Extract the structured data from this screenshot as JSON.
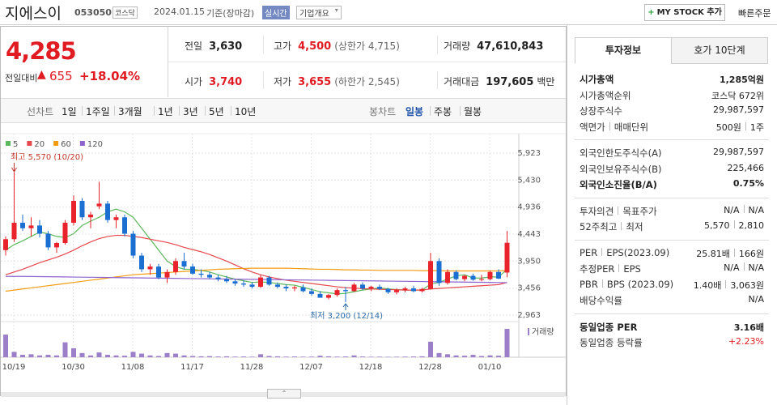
{
  "header": {
    "name": "지에스이",
    "code": "053050",
    "market": "코스닥",
    "date": "2024.01.15",
    "basis": "기준(장마감)",
    "realtime": "실시간",
    "overview": "기업개요",
    "my_stock": "MY STOCK 추가",
    "quick_order": "빠른주문"
  },
  "price": {
    "current": "4,285",
    "change_label": "전일대비",
    "change": "655",
    "change_rate": "+18.04%"
  },
  "stats": [
    {
      "label": "전일",
      "value": "3,630"
    },
    {
      "label": "고가",
      "value": "4,500",
      "extra": "(상한가 4,715)",
      "color": "#e01b22"
    },
    {
      "label": "거래량",
      "value": "47,610,843"
    },
    {
      "label": "시가",
      "value": "3,740",
      "color": "#e01b22"
    },
    {
      "label": "저가",
      "value": "3,655",
      "extra": "(하한가 2,545)",
      "color": "#e01b22"
    },
    {
      "label": "거래대금",
      "value": "197,605",
      "unit": "백만"
    }
  ],
  "chart_tabs": {
    "line_label": "선차트",
    "periods": [
      "1일",
      "1주일",
      "3개월",
      "1년",
      "3년",
      "5년",
      "10년"
    ],
    "candle_label": "봉차트",
    "candle_periods": [
      "일봉",
      "주봉",
      "월봉"
    ]
  },
  "chart_data": {
    "type": "candlestick",
    "x": [
      "10/19",
      null,
      null,
      null,
      null,
      null,
      null,
      "10/30",
      null,
      null,
      null,
      null,
      null,
      null,
      "11/08",
      null,
      null,
      null,
      null,
      null,
      null,
      "11/17",
      null,
      null,
      null,
      null,
      null,
      null,
      "11/28",
      null,
      null,
      null,
      null,
      null,
      null,
      "12/07",
      null,
      null,
      null,
      null,
      null,
      null,
      "12/18",
      null,
      null,
      null,
      null,
      null,
      null,
      "12/28",
      null,
      null,
      null,
      null,
      null,
      null,
      "01/10",
      null,
      null,
      null
    ],
    "open": [
      4150,
      4350,
      4650,
      4550,
      4600,
      4450,
      4200,
      4280,
      4650,
      5050,
      4750,
      4950,
      5000,
      4700,
      4750,
      4450,
      4050,
      3800,
      3850,
      3650,
      3750,
      3950,
      3850,
      3720,
      3700,
      3650,
      3620,
      3580,
      3540,
      3520,
      3480,
      3650,
      3520,
      3480,
      3450,
      3470,
      3400,
      3350,
      3280,
      3330,
      3420,
      3400,
      3520,
      3450,
      3480,
      3440,
      3380,
      3420,
      3450,
      3400,
      3440,
      3950,
      3550,
      3750,
      3620,
      3680,
      3610,
      3620,
      3750,
      3740
    ],
    "high": [
      4400,
      5570,
      4800,
      4750,
      4700,
      4500,
      4300,
      4700,
      5150,
      5100,
      4850,
      5400,
      5050,
      4800,
      4800,
      4500,
      4100,
      3900,
      3900,
      3800,
      4000,
      4100,
      3900,
      3800,
      3750,
      3700,
      3680,
      3620,
      3600,
      3560,
      3700,
      3680,
      3560,
      3520,
      3500,
      3520,
      3450,
      3400,
      3350,
      3450,
      3480,
      3550,
      3560,
      3500,
      3520,
      3460,
      3450,
      3480,
      3500,
      3460,
      4100,
      4000,
      3800,
      3780,
      3700,
      3720,
      3700,
      3780,
      3800,
      4500
    ],
    "low": [
      4050,
      4300,
      4500,
      4400,
      4380,
      4150,
      4100,
      4250,
      4600,
      4700,
      4550,
      4900,
      4650,
      4550,
      4400,
      4000,
      3750,
      3700,
      3620,
      3550,
      3700,
      3800,
      3700,
      3650,
      3620,
      3580,
      3550,
      3500,
      3480,
      3450,
      3460,
      3500,
      3450,
      3400,
      3400,
      3380,
      3320,
      3300,
      3250,
      3300,
      3200,
      3390,
      3420,
      3400,
      3420,
      3350,
      3340,
      3380,
      3380,
      3380,
      3430,
      3500,
      3520,
      3600,
      3580,
      3590,
      3580,
      3600,
      3620,
      3655
    ],
    "close": [
      4350,
      4650,
      4550,
      4600,
      4450,
      4200,
      4280,
      4650,
      5050,
      4750,
      4800,
      5000,
      4700,
      4750,
      4450,
      4050,
      3800,
      3850,
      3650,
      3750,
      3950,
      3850,
      3720,
      3700,
      3650,
      3620,
      3580,
      3540,
      3520,
      3480,
      3650,
      3520,
      3480,
      3450,
      3470,
      3400,
      3350,
      3280,
      3330,
      3420,
      3400,
      3520,
      3450,
      3480,
      3440,
      3380,
      3420,
      3450,
      3400,
      3440,
      3950,
      3550,
      3750,
      3620,
      3680,
      3610,
      3620,
      3750,
      3630,
      4285
    ],
    "up_color": "#e8232b",
    "down_color": "#1a6fd1",
    "ylim": [
      2963,
      5923
    ],
    "yticks": [
      {
        "value": 5923,
        "label": "5,923"
      },
      {
        "value": 5430,
        "label": "5,430"
      },
      {
        "value": 4936,
        "label": "4,936"
      },
      {
        "value": 4443,
        "label": "4,443"
      },
      {
        "value": 3950,
        "label": "3,950"
      },
      {
        "value": 3456,
        "label": "3,456"
      },
      {
        "value": 2963,
        "label": "2,963"
      }
    ],
    "series": [
      {
        "name": "5",
        "color": "#5cb85c",
        "values": [
          4150,
          4250,
          4320,
          4400,
          4480,
          4450,
          4400,
          4380,
          4450,
          4600,
          4680,
          4750,
          4850,
          4900,
          4850,
          4750,
          4550,
          4350,
          4150,
          3950,
          3850,
          3800,
          3800,
          3780,
          3750,
          3700,
          3660,
          3620,
          3590,
          3560,
          3570,
          3560,
          3540,
          3520,
          3510,
          3470,
          3430,
          3390,
          3370,
          3350,
          3360,
          3390,
          3420,
          3440,
          3460,
          3440,
          3430,
          3420,
          3420,
          3420,
          3530,
          3560,
          3620,
          3680,
          3700,
          3640,
          3640,
          3660,
          3660,
          3800
        ]
      },
      {
        "name": "20",
        "color": "#e5484d",
        "values": [
          3700,
          3750,
          3800,
          3860,
          3920,
          3970,
          4020,
          4080,
          4150,
          4230,
          4300,
          4360,
          4400,
          4420,
          4420,
          4400,
          4380,
          4350,
          4320,
          4290,
          4250,
          4200,
          4160,
          4120,
          4070,
          4010,
          3950,
          3880,
          3810,
          3750,
          3700,
          3660,
          3630,
          3600,
          3580,
          3560,
          3540,
          3520,
          3500,
          3480,
          3465,
          3455,
          3445,
          3440,
          3435,
          3430,
          3425,
          3420,
          3420,
          3420,
          3440,
          3450,
          3460,
          3470,
          3480,
          3490,
          3500,
          3510,
          3520,
          3560
        ]
      },
      {
        "name": "60",
        "color": "#f39c12",
        "values": [
          3400,
          3420,
          3440,
          3460,
          3480,
          3500,
          3520,
          3540,
          3560,
          3580,
          3600,
          3620,
          3640,
          3660,
          3680,
          3700,
          3710,
          3720,
          3730,
          3740,
          3750,
          3760,
          3770,
          3780,
          3790,
          3800,
          3805,
          3810,
          3815,
          3820,
          3820,
          3820,
          3820,
          3820,
          3815,
          3810,
          3805,
          3800,
          3800,
          3795,
          3790,
          3790,
          3785,
          3785,
          3780,
          3780,
          3780,
          3780,
          3780,
          3775,
          3775,
          3775,
          3770,
          3770,
          3770,
          3770,
          3770,
          3770,
          3770,
          3780
        ]
      },
      {
        "name": "120",
        "color": "#8e63ce",
        "values": [
          3670,
          3670,
          3670,
          3668,
          3666,
          3664,
          3662,
          3660,
          3658,
          3656,
          3654,
          3652,
          3650,
          3648,
          3646,
          3644,
          3642,
          3640,
          3638,
          3636,
          3634,
          3632,
          3630,
          3628,
          3626,
          3624,
          3622,
          3620,
          3618,
          3616,
          3614,
          3612,
          3610,
          3608,
          3606,
          3604,
          3602,
          3600,
          3598,
          3596,
          3594,
          3592,
          3590,
          3588,
          3586,
          3584,
          3582,
          3580,
          3578,
          3576,
          3574,
          3572,
          3570,
          3568,
          3566,
          3564,
          3562,
          3560,
          3558,
          3556
        ]
      }
    ],
    "volume": {
      "name": "거래량",
      "color": "#9b7fc9",
      "values": [
        38000000,
        9000000,
        4000000,
        5000000,
        3000000,
        4000000,
        3000000,
        25000000,
        15000000,
        7000000,
        3000000,
        8000000,
        4000000,
        3000000,
        2500000,
        9000000,
        6000000,
        3000000,
        2000000,
        7000000,
        6000000,
        3000000,
        2000000,
        1500000,
        1800000,
        1200000,
        1500000,
        1000000,
        1200000,
        900000,
        5000000,
        2000000,
        1500000,
        1000000,
        1200000,
        900000,
        1000000,
        2500000,
        1500000,
        1000000,
        1200000,
        3000000,
        1200000,
        800000,
        900000,
        700000,
        800000,
        1000000,
        1200000,
        1500000,
        26000000,
        7000000,
        5000000,
        3000000,
        2500000,
        4000000,
        2000000,
        3000000,
        2500000,
        47610843
      ]
    },
    "high_label": "최고 5,570 (10/20)",
    "low_label": "최저 3,200 (12/14)",
    "grid": true
  },
  "side": {
    "tabs": [
      "투자정보",
      "호가 10단계"
    ],
    "sections": [
      [
        {
          "label": [
            "시가총액"
          ],
          "value": [
            "1,285억원"
          ],
          "emphasis": true
        },
        {
          "label": [
            "시가총액순위"
          ],
          "value": [
            "코스닥 672위"
          ]
        },
        {
          "label": [
            "상장주식수"
          ],
          "value": [
            "29,987,597"
          ]
        },
        {
          "label": [
            "액면가",
            "매매단위"
          ],
          "value": [
            "500원",
            "1주"
          ]
        }
      ],
      [
        {
          "label": [
            "외국인한도주식수(A)"
          ],
          "value": [
            "29,987,597"
          ]
        },
        {
          "label": [
            "외국인보유주식수(B)"
          ],
          "value": [
            "225,466"
          ]
        },
        {
          "label": [
            "외국인소진율(B/A)"
          ],
          "value": [
            "0.75%"
          ],
          "emphasis": true
        }
      ],
      [
        {
          "label": [
            "투자의견",
            "목표주가"
          ],
          "value": [
            "N/A",
            "N/A"
          ]
        },
        {
          "label": [
            "52주최고",
            "최저"
          ],
          "value": [
            "5,570",
            "2,810"
          ]
        }
      ],
      [
        {
          "label": [
            "PER",
            "EPS(2023.09)"
          ],
          "value": [
            "25.81배",
            "166원"
          ]
        },
        {
          "label": [
            "추정PER",
            "EPS"
          ],
          "value": [
            "N/A",
            "N/A"
          ]
        },
        {
          "label": [
            "PBR",
            "BPS (2023.09)"
          ],
          "value": [
            "1.40배",
            "3,063원"
          ]
        },
        {
          "label": [
            "배당수익률"
          ],
          "value": [
            "N/A"
          ]
        }
      ],
      [
        {
          "label": [
            "동일업종 PER"
          ],
          "value": [
            "3.16배"
          ],
          "emphasis": true
        },
        {
          "label": [
            "동일업종 등락률"
          ],
          "value": [
            "+2.23%"
          ],
          "color": "#e01b22"
        }
      ]
    ]
  }
}
